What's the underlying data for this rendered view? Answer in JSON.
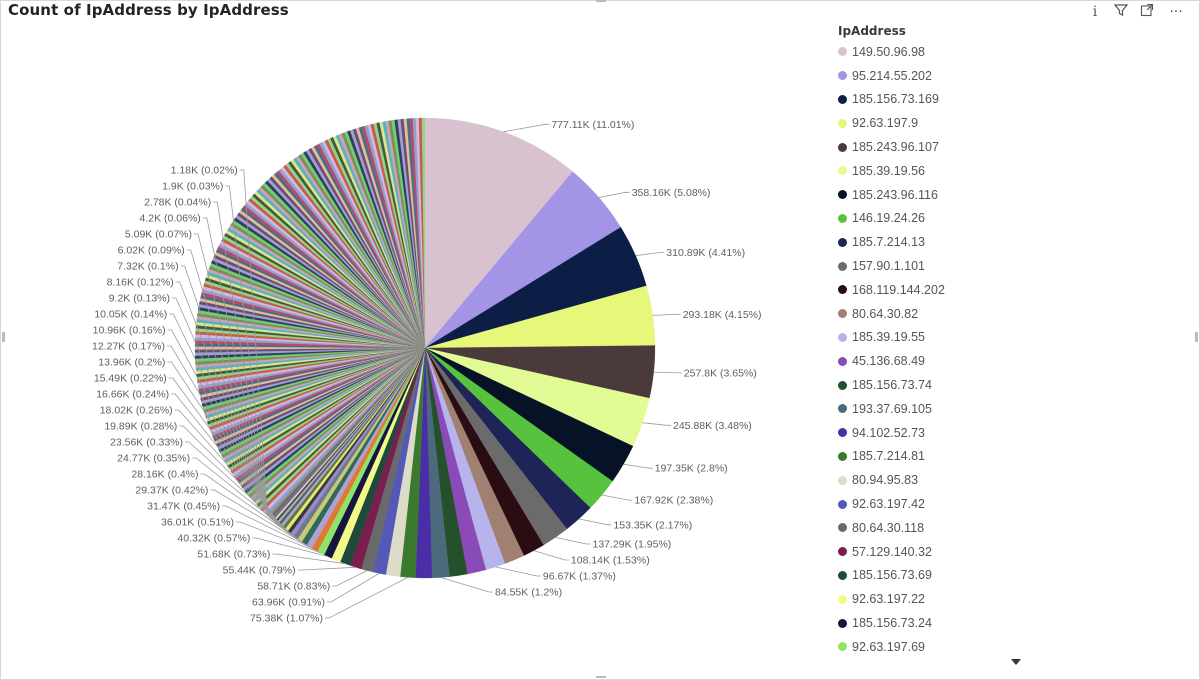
{
  "chart_data": {
    "type": "pie",
    "title": "Count of IpAddress by IpAddress",
    "legend_title": "IpAddress",
    "legend_position": "right",
    "slices": [
      {
        "label": "149.50.96.98",
        "value": 777110,
        "display": "777.11K (11.01%)",
        "color": "#d9c2d0"
      },
      {
        "label": "95.214.55.202",
        "value": 358160,
        "display": "358.16K (5.08%)",
        "color": "#a394e6"
      },
      {
        "label": "185.156.73.169",
        "value": 310890,
        "display": "310.89K (4.41%)",
        "color": "#0c1e45"
      },
      {
        "label": "92.63.197.9",
        "value": 293180,
        "display": "293.18K (4.15%)",
        "color": "#e7f77a"
      },
      {
        "label": "185.243.96.107",
        "value": 257800,
        "display": "257.8K (3.65%)",
        "color": "#4a3a3c"
      },
      {
        "label": "185.39.19.56",
        "value": 245880,
        "display": "245.88K (3.48%)",
        "color": "#e2fb95"
      },
      {
        "label": "185.243.96.116",
        "value": 197350,
        "display": "197.35K (2.8%)",
        "color": "#061226"
      },
      {
        "label": "146.19.24.26",
        "value": 167920,
        "display": "167.92K (2.38%)",
        "color": "#57c23e"
      },
      {
        "label": "185.7.214.13",
        "value": 153350,
        "display": "153.35K (2.17%)",
        "color": "#1e2457"
      },
      {
        "label": "157.90.1.101",
        "value": 137290,
        "display": "137.29K (1.95%)",
        "color": "#6b6b6b"
      },
      {
        "label": "168.119.144.202",
        "value": 108140,
        "display": "108.14K (1.53%)",
        "color": "#2a0d12"
      },
      {
        "label": "80.64.30.82",
        "value": 100000,
        "display": "",
        "color": "#a08070"
      },
      {
        "label": "185.39.19.55",
        "value": 96670,
        "display": "96.67K (1.37%)",
        "color": "#b7b3ec"
      },
      {
        "label": "45.136.68.49",
        "value": 92000,
        "display": "",
        "color": "#8a4ab8"
      },
      {
        "label": "185.156.73.74",
        "value": 88000,
        "display": "",
        "color": "#24502a"
      },
      {
        "label": "193.37.69.105",
        "value": 84550,
        "display": "84.55K (1.2%)",
        "color": "#4c6a7c"
      },
      {
        "label": "94.102.52.73",
        "value": 80000,
        "display": "",
        "color": "#4a2ea6"
      },
      {
        "label": "185.7.214.81",
        "value": 75380,
        "display": "75.38K (1.07%)",
        "color": "#3b7a2e"
      },
      {
        "label": "80.94.95.83",
        "value": 70000,
        "display": "",
        "color": "#dcdcc8"
      },
      {
        "label": "92.63.197.42",
        "value": 63960,
        "display": "63.96K (0.91%)",
        "color": "#5459b8"
      },
      {
        "label": "80.64.30.118",
        "value": 58710,
        "display": "58.71K (0.83%)",
        "color": "#6a6a6a"
      },
      {
        "label": "57.129.140.32",
        "value": 55440,
        "display": "55.44K (0.79%)",
        "color": "#7a1e4e"
      },
      {
        "label": "185.156.73.69",
        "value": 51680,
        "display": "51.68K (0.73%)",
        "color": "#1e4a3c"
      },
      {
        "label": "92.63.197.22",
        "value": 45000,
        "display": "",
        "color": "#f4fa8a"
      },
      {
        "label": "185.156.73.24",
        "value": 40320,
        "display": "40.32K (0.57%)",
        "color": "#151540"
      },
      {
        "label": "92.63.197.69",
        "value": 36010,
        "display": "36.01K (0.51%)",
        "color": "#8ee36a"
      },
      {
        "label": "",
        "value": 31470,
        "display": "31.47K (0.45%)",
        "color": "#e07a30"
      },
      {
        "label": "",
        "value": 29370,
        "display": "29.37K (0.42%)",
        "color": "#b0a0d8"
      },
      {
        "label": "",
        "value": 28160,
        "display": "28.16K (0.4%)",
        "color": "#2e6a55"
      },
      {
        "label": "",
        "value": 24770,
        "display": "24.77K (0.35%)",
        "color": "#c8c878"
      },
      {
        "label": "",
        "value": 23560,
        "display": "23.56K (0.33%)",
        "color": "#6c7a8a"
      },
      {
        "label": "",
        "value": 19890,
        "display": "19.89K (0.28%)",
        "color": "#9a8ad0"
      },
      {
        "label": "",
        "value": 18020,
        "display": "18.02K (0.26%)",
        "color": "#3a3a3a"
      },
      {
        "label": "",
        "value": 16660,
        "display": "16.66K (0.24%)",
        "color": "#e8e86a"
      },
      {
        "label": "",
        "value": 15490,
        "display": "15.49K (0.22%)",
        "color": "#507a50"
      },
      {
        "label": "",
        "value": 13960,
        "display": "13.96K (0.2%)",
        "color": "#c0a0b0"
      },
      {
        "label": "",
        "value": 12270,
        "display": "12.27K (0.17%)",
        "color": "#4a5aa0"
      },
      {
        "label": "",
        "value": 10960,
        "display": "10.96K (0.16%)",
        "color": "#a0c080"
      },
      {
        "label": "",
        "value": 10050,
        "display": "10.05K (0.14%)",
        "color": "#604050"
      },
      {
        "label": "",
        "value": 9200,
        "display": "9.2K (0.13%)",
        "color": "#d0d0ff"
      },
      {
        "label": "",
        "value": 8160,
        "display": "8.16K (0.12%)",
        "color": "#8a6a3a"
      },
      {
        "label": "",
        "value": 7320,
        "display": "7.32K (0.1%)",
        "color": "#3a8aa0"
      },
      {
        "label": "",
        "value": 6020,
        "display": "6.02K (0.09%)",
        "color": "#a03a5a"
      },
      {
        "label": "",
        "value": 5090,
        "display": "5.09K (0.07%)",
        "color": "#5aa05a"
      },
      {
        "label": "",
        "value": 4200,
        "display": "4.2K (0.06%)",
        "color": "#7a7ad0"
      },
      {
        "label": "",
        "value": 2780,
        "display": "2.78K (0.04%)",
        "color": "#d0a050"
      },
      {
        "label": "",
        "value": 1900,
        "display": "1.9K (0.03%)",
        "color": "#505050"
      },
      {
        "label": "",
        "value": 1180,
        "display": "1.18K (0.02%)",
        "color": "#90d0d0"
      }
    ],
    "remaining_slices": {
      "count": 180,
      "total_value": 2660000,
      "palette": [
        "#8fa3c9",
        "#c9a3b8",
        "#4b6b8a",
        "#e1e38a",
        "#6a4b7a",
        "#9bcf8f",
        "#2f3d5c",
        "#d4b5e8",
        "#7c8c5a",
        "#b84a6a",
        "#5ab0c0",
        "#e0c090",
        "#3c5c3c",
        "#a0a0d0",
        "#c06040",
        "#70d070"
      ]
    }
  },
  "toolbar": {
    "info_icon": "i",
    "filter_icon": "⏚",
    "expand_icon": "⤢",
    "more_icon": "···"
  },
  "colors": {
    "leader_line": "#9a9a9a",
    "axis_text": "#605e5c"
  }
}
